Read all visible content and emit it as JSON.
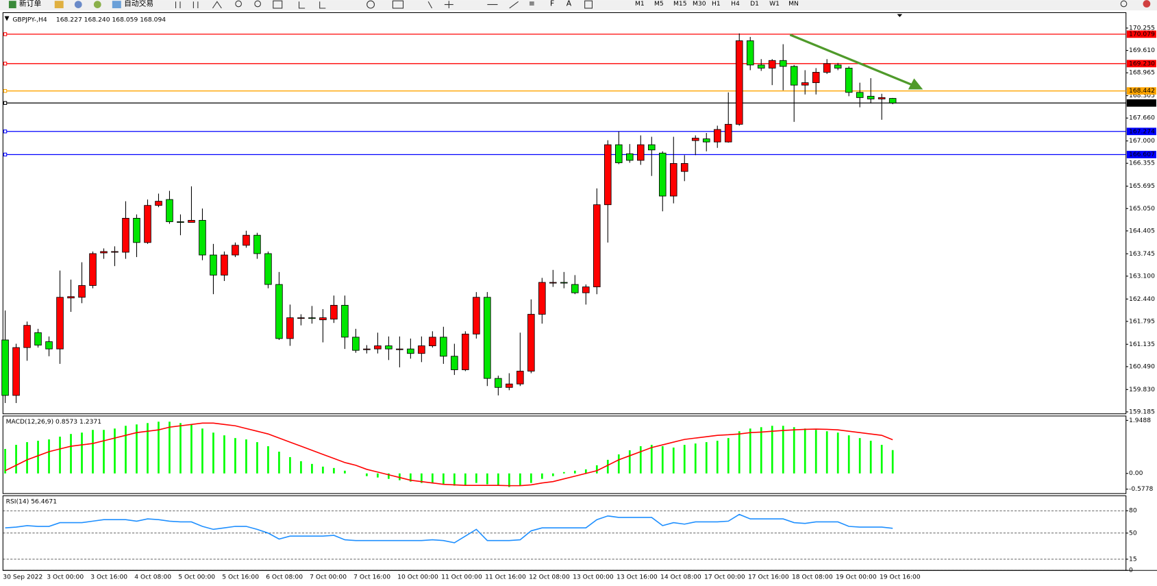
{
  "toolbar": {
    "order_button": "新订单",
    "auto_trade_button": "自动交易",
    "timeframes": [
      "M1",
      "M5",
      "M15",
      "M30",
      "H1",
      "H4",
      "D1",
      "W1",
      "MN"
    ]
  },
  "chart_data": [
    {
      "type": "candlestick",
      "title": "GBPJPY-,H4",
      "ohlc_text": "168.227 168.240 168.059 168.094",
      "categories": [
        "30 Sep 2022",
        null,
        null,
        null,
        "3 Oct 00:00",
        null,
        null,
        null,
        "3 Oct 16:00",
        null,
        null,
        null,
        "4 Oct 08:00",
        null,
        null,
        null,
        "5 Oct 00:00",
        null,
        null,
        null,
        "5 Oct 16:00",
        null,
        null,
        null,
        "6 Oct 08:00",
        null,
        null,
        null,
        "7 Oct 00:00",
        null,
        null,
        null,
        "7 Oct 16:00",
        null,
        null,
        null,
        "10 Oct 00:00",
        null,
        null,
        null,
        "11 Oct 00:00",
        null,
        null,
        null,
        "11 Oct 16:00",
        null,
        null,
        null,
        "12 Oct 08:00",
        null,
        null,
        null,
        "13 Oct 00:00",
        null,
        null,
        null,
        "13 Oct 16:00",
        null,
        null,
        null,
        "14 Oct 08:00",
        null,
        null,
        null,
        "17 Oct 00:00",
        null,
        null,
        null,
        "17 Oct 16:00",
        null,
        null,
        null,
        "18 Oct 08:00",
        null,
        null,
        null,
        "19 Oct 00:00",
        null,
        null,
        null,
        "19 Oct 16:00",
        null
      ],
      "open": [
        161.26,
        159.66,
        161.04,
        161.47,
        161.21,
        161.0,
        162.47,
        162.49,
        162.83,
        163.77,
        163.79,
        163.79,
        164.77,
        164.07,
        165.14,
        165.31,
        164.67,
        164.65,
        164.71,
        163.71,
        163.13,
        163.71,
        163.99,
        164.28,
        163.75,
        162.86,
        161.3,
        161.88,
        161.9,
        161.84,
        161.86,
        162.26,
        161.34,
        160.98,
        161.0,
        161.09,
        160.98,
        161.0,
        160.87,
        161.09,
        161.34,
        160.79,
        160.4,
        161.43,
        162.49,
        160.15,
        159.89,
        159.99,
        160.36,
        162.0,
        162.9,
        162.92,
        162.86,
        162.62,
        162.79,
        165.16,
        166.89,
        166.63,
        166.44,
        166.89,
        166.65,
        165.41,
        166.12,
        167.01,
        167.06,
        166.97,
        166.97,
        167.48,
        169.89,
        169.19,
        169.1,
        169.32,
        169.15,
        168.61,
        168.68,
        168.98,
        169.19,
        169.1,
        168.4,
        168.29,
        168.21,
        168.227
      ],
      "high": [
        162.11,
        161.15,
        161.79,
        161.58,
        161.36,
        163.26,
        163.0,
        163.5,
        163.81,
        163.9,
        163.96,
        165.26,
        164.88,
        165.31,
        165.48,
        165.56,
        164.88,
        165.69,
        165.05,
        164.03,
        163.81,
        164.07,
        164.41,
        164.35,
        163.81,
        163.22,
        162.28,
        162.0,
        162.24,
        162.15,
        162.54,
        162.54,
        161.58,
        161.11,
        161.47,
        161.36,
        161.36,
        161.3,
        161.36,
        161.51,
        161.64,
        161.15,
        161.51,
        162.64,
        162.64,
        160.23,
        160.3,
        161.47,
        162.43,
        163.05,
        163.28,
        163.22,
        163.13,
        162.86,
        165.63,
        167.02,
        167.27,
        166.91,
        167.16,
        167.12,
        166.7,
        167.12,
        166.59,
        167.16,
        167.23,
        167.44,
        168.4,
        170.1,
        170.0,
        169.36,
        169.36,
        169.79,
        169.19,
        169.04,
        169.1,
        169.36,
        169.25,
        169.15,
        168.68,
        168.81,
        168.36,
        168.24
      ],
      "low": [
        159.44,
        159.44,
        160.66,
        161.04,
        160.79,
        160.57,
        162.07,
        162.32,
        162.75,
        163.6,
        163.39,
        163.6,
        163.65,
        164.03,
        165.09,
        164.61,
        164.28,
        164.65,
        163.56,
        162.58,
        162.96,
        163.65,
        163.92,
        163.6,
        162.75,
        161.26,
        161.09,
        161.68,
        161.73,
        161.19,
        161.75,
        161.0,
        160.89,
        160.87,
        160.87,
        160.68,
        160.47,
        160.72,
        160.62,
        161.04,
        160.57,
        160.25,
        160.36,
        161.3,
        159.93,
        159.66,
        159.81,
        159.93,
        160.3,
        161.73,
        162.79,
        162.75,
        162.58,
        162.28,
        162.58,
        164.07,
        166.33,
        166.37,
        166.31,
        165.99,
        164.97,
        165.2,
        165.84,
        166.59,
        166.7,
        166.8,
        166.95,
        167.44,
        169.04,
        169.02,
        168.61,
        168.46,
        167.55,
        168.34,
        168.34,
        168.93,
        169.04,
        168.29,
        167.97,
        168.08,
        167.61,
        168.059
      ],
      "close": [
        159.66,
        161.04,
        161.68,
        161.11,
        161.0,
        162.49,
        162.51,
        162.83,
        163.75,
        163.81,
        163.81,
        164.77,
        164.07,
        165.14,
        165.26,
        164.67,
        164.65,
        164.71,
        163.71,
        163.13,
        163.71,
        163.99,
        164.28,
        163.75,
        162.86,
        161.3,
        161.9,
        161.9,
        161.88,
        161.9,
        162.26,
        161.34,
        160.96,
        161.0,
        161.09,
        161.0,
        161.0,
        160.87,
        161.09,
        161.34,
        160.79,
        160.4,
        161.43,
        162.49,
        160.15,
        159.89,
        159.99,
        160.36,
        162.0,
        162.92,
        162.92,
        162.9,
        162.62,
        162.79,
        165.16,
        166.89,
        166.37,
        166.44,
        166.89,
        166.74,
        165.41,
        166.35,
        166.35,
        167.08,
        166.97,
        167.33,
        167.48,
        169.89,
        169.19,
        169.1,
        169.32,
        169.15,
        168.61,
        168.68,
        168.98,
        169.23,
        169.1,
        168.4,
        168.25,
        168.21,
        168.25,
        168.094
      ],
      "up_color": "#ff0000",
      "down_color": "#00e600",
      "ylim": [
        159.13,
        170.7
      ],
      "yticks": [
        170.255,
        {
          "value": 169.61,
          "label": "169.610"
        },
        168.965,
        168.305,
        {
          "value": 167.66,
          "label": "167.660"
        },
        {
          "value": 167,
          "label": "167.000"
        },
        166.355,
        165.695,
        {
          "value": 165.05,
          "label": "165.050"
        },
        164.405,
        163.745,
        {
          "value": 163.1,
          "label": "163.100"
        },
        {
          "value": 162.44,
          "label": "162.440"
        },
        161.795,
        161.135,
        {
          "value": 160.49,
          "label": "160.490"
        },
        {
          "value": 159.83,
          "label": "159.830"
        },
        159.185
      ],
      "grid": false,
      "hlines": [
        {
          "value": 170.079,
          "color": "#ff0000"
        },
        {
          "value": 169.23,
          "label": "169.230",
          "color": "#ff0000"
        },
        {
          "value": 168.442,
          "color": "#ffa500"
        },
        {
          "value": 168.094,
          "color": "#000000"
        },
        {
          "value": 167.274,
          "color": "#0000ff"
        },
        {
          "value": 166.607,
          "color": "#0000ff"
        }
      ]
    },
    {
      "type": "macd",
      "title": "MACD(12,26,9) 0.8573 1.2371",
      "histogram": {
        "color": "#00ff00",
        "values": [
          0.9,
          1.05,
          1.15,
          1.2,
          1.25,
          1.35,
          1.45,
          1.5,
          1.6,
          1.6,
          1.65,
          1.75,
          1.8,
          1.85,
          1.9,
          1.9,
          1.85,
          1.8,
          1.65,
          1.5,
          1.4,
          1.3,
          1.25,
          1.15,
          1.0,
          0.8,
          0.6,
          0.45,
          0.35,
          0.25,
          0.2,
          0.1,
          0.0,
          -0.1,
          -0.15,
          -0.2,
          -0.25,
          -0.3,
          -0.35,
          -0.35,
          -0.4,
          -0.45,
          -0.45,
          -0.35,
          -0.4,
          -0.45,
          -0.5,
          -0.45,
          -0.35,
          -0.2,
          -0.1,
          0.05,
          0.1,
          0.15,
          0.3,
          0.5,
          0.7,
          0.85,
          1.0,
          1.05,
          1.0,
          0.95,
          1.05,
          1.1,
          1.15,
          1.2,
          1.3,
          1.55,
          1.65,
          1.7,
          1.75,
          1.75,
          1.7,
          1.65,
          1.6,
          1.55,
          1.5,
          1.4,
          1.3,
          1.2,
          1.05,
          0.8573
        ]
      },
      "signal": {
        "color": "#ff0000",
        "values": [
          0.1,
          0.3,
          0.5,
          0.65,
          0.8,
          0.9,
          1.0,
          1.05,
          1.1,
          1.2,
          1.3,
          1.4,
          1.5,
          1.55,
          1.6,
          1.7,
          1.75,
          1.8,
          1.85,
          1.85,
          1.8,
          1.75,
          1.65,
          1.55,
          1.45,
          1.3,
          1.15,
          1.0,
          0.85,
          0.7,
          0.55,
          0.4,
          0.3,
          0.15,
          0.05,
          -0.05,
          -0.15,
          -0.25,
          -0.3,
          -0.35,
          -0.4,
          -0.42,
          -0.44,
          -0.44,
          -0.44,
          -0.44,
          -0.45,
          -0.45,
          -0.42,
          -0.35,
          -0.3,
          -0.2,
          -0.1,
          0.0,
          0.1,
          0.3,
          0.5,
          0.65,
          0.8,
          0.95,
          1.05,
          1.15,
          1.25,
          1.3,
          1.35,
          1.4,
          1.42,
          1.45,
          1.5,
          1.52,
          1.55,
          1.58,
          1.6,
          1.62,
          1.63,
          1.62,
          1.6,
          1.55,
          1.5,
          1.45,
          1.4,
          1.2371
        ]
      },
      "ylim": [
        -0.74,
        2.11
      ],
      "yticks": [
        1.9488,
        {
          "value": 0,
          "label": "0.00"
        },
        -0.5778
      ],
      "grid": false
    },
    {
      "type": "line",
      "title": "RSI(14) 56.4671",
      "color": "#1e8fff",
      "values": [
        57,
        58,
        60,
        59,
        59,
        64,
        64,
        64,
        66,
        68,
        68,
        68,
        66,
        69,
        68,
        66,
        65,
        65,
        59,
        55,
        57,
        59,
        59,
        55,
        50,
        42,
        46,
        46,
        46,
        46,
        47,
        41,
        40,
        40,
        40,
        40,
        40,
        40,
        40,
        41,
        40,
        37,
        46,
        55,
        40,
        40,
        40,
        41,
        53,
        57,
        57,
        57,
        57,
        57,
        68,
        73,
        71,
        71,
        71,
        71,
        60,
        64,
        62,
        65,
        65,
        65,
        66,
        75,
        69,
        69,
        69,
        69,
        64,
        63,
        65,
        65,
        65,
        59,
        58,
        58,
        58,
        56.4671
      ],
      "ylim": [
        0,
        100
      ],
      "yticks": [
        80,
        50,
        15,
        0
      ],
      "grid": true
    }
  ]
}
